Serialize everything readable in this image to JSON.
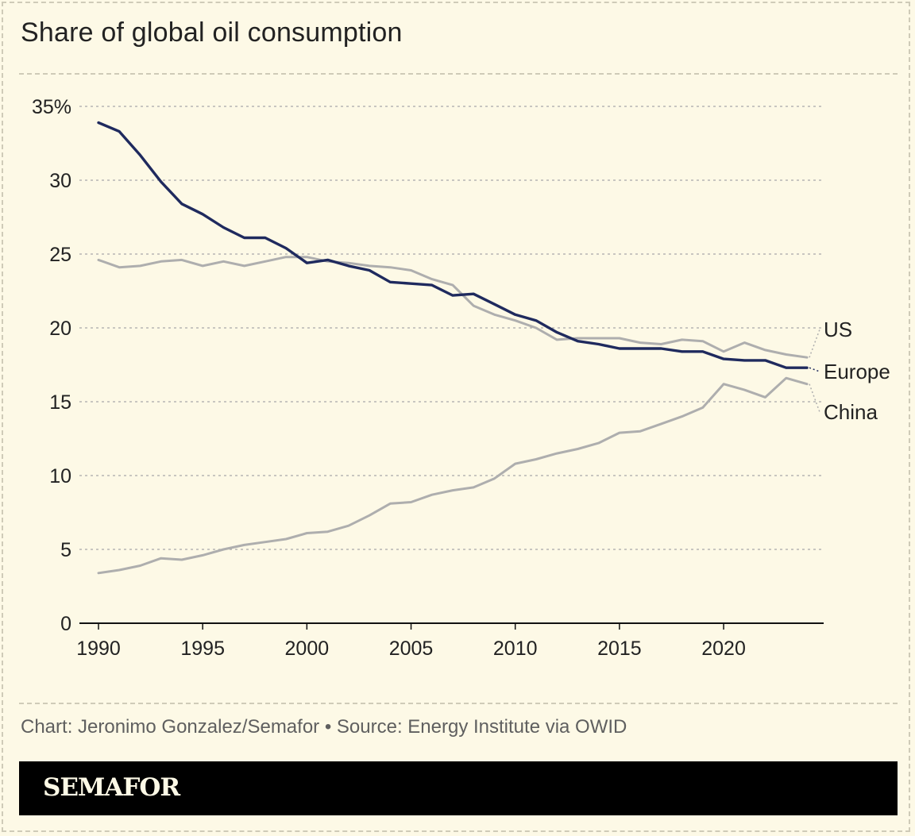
{
  "header": {
    "title": "Share of global oil consumption"
  },
  "footer": {
    "credit": "Chart: Jeronimo Gonzalez/Semafor • Source: Energy Institute via OWID",
    "brand": "SEMAFOR"
  },
  "colors": {
    "background": "#fdf9e6",
    "highlight": "#1f2a5e",
    "muted": "#aeaeae",
    "grid": "#a9a9a9"
  },
  "chart_data": {
    "type": "line",
    "title": "Share of global oil consumption",
    "xlabel": "",
    "ylabel": "",
    "xlim": [
      1990,
      2024
    ],
    "ylim": [
      0,
      35
    ],
    "y_ticks": [
      0,
      5,
      10,
      15,
      20,
      25,
      30,
      35
    ],
    "y_tick_labels": [
      "0",
      "5",
      "10",
      "15",
      "20",
      "25",
      "30",
      "35%"
    ],
    "x_ticks": [
      1990,
      1995,
      2000,
      2005,
      2010,
      2015,
      2020
    ],
    "x_tick_labels": [
      "1990",
      "1995",
      "2000",
      "2005",
      "2010",
      "2015",
      "2020"
    ],
    "grid": "horizontal dashed",
    "legend": "direct labels at right end",
    "x": [
      1990,
      1991,
      1992,
      1993,
      1994,
      1995,
      1996,
      1997,
      1998,
      1999,
      2000,
      2001,
      2002,
      2003,
      2004,
      2005,
      2006,
      2007,
      2008,
      2009,
      2010,
      2011,
      2012,
      2013,
      2014,
      2015,
      2016,
      2017,
      2018,
      2019,
      2020,
      2021,
      2022,
      2023,
      2024
    ],
    "series": [
      {
        "name": "US",
        "color": "#aeaeae",
        "values": [
          24.6,
          24.1,
          24.2,
          24.5,
          24.6,
          24.2,
          24.5,
          24.2,
          24.5,
          24.8,
          24.8,
          24.5,
          24.4,
          24.2,
          24.1,
          23.9,
          23.3,
          22.9,
          21.5,
          20.9,
          20.5,
          20.0,
          19.2,
          19.3,
          19.3,
          19.3,
          19.0,
          18.9,
          19.2,
          19.1,
          18.4,
          19.0,
          18.5,
          18.2,
          18.0
        ]
      },
      {
        "name": "Europe",
        "color": "#1f2a5e",
        "values": [
          33.9,
          33.3,
          31.7,
          29.9,
          28.4,
          27.7,
          26.8,
          26.1,
          26.1,
          25.4,
          24.4,
          24.6,
          24.2,
          23.9,
          23.1,
          23.0,
          22.9,
          22.2,
          22.3,
          21.6,
          20.9,
          20.5,
          19.7,
          19.1,
          18.9,
          18.6,
          18.6,
          18.6,
          18.4,
          18.4,
          17.9,
          17.8,
          17.8,
          17.3,
          17.3
        ]
      },
      {
        "name": "China",
        "color": "#aeaeae",
        "values": [
          3.4,
          3.6,
          3.9,
          4.4,
          4.3,
          4.6,
          5.0,
          5.3,
          5.5,
          5.7,
          6.1,
          6.2,
          6.6,
          7.3,
          8.1,
          8.2,
          8.7,
          9.0,
          9.2,
          9.8,
          10.8,
          11.1,
          11.5,
          11.8,
          12.2,
          12.9,
          13.0,
          13.5,
          14.0,
          14.6,
          16.2,
          15.8,
          15.3,
          16.6,
          16.2
        ]
      }
    ]
  }
}
